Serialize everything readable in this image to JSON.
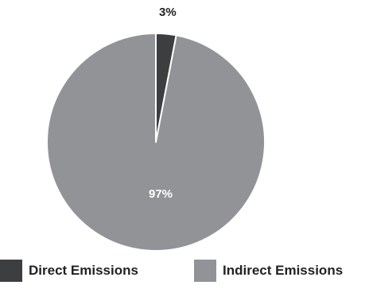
{
  "chart_data": {
    "type": "pie",
    "title": "",
    "slices": [
      {
        "name": "Direct Emissions",
        "value": 3,
        "label": "3%",
        "color": "#3d3e40"
      },
      {
        "name": "Indirect Emissions",
        "value": 97,
        "label": "97%",
        "color": "#929397"
      }
    ],
    "legend": {
      "placement": "bottom",
      "items": [
        "Direct Emissions",
        "Indirect Emissions"
      ]
    },
    "separator_color": "#ffffff"
  }
}
